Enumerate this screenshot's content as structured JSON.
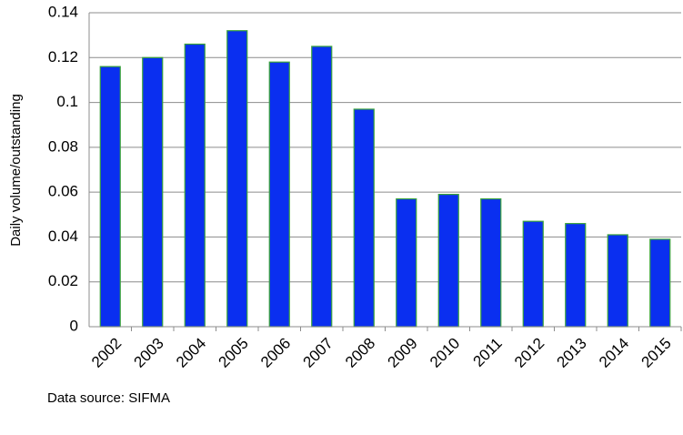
{
  "chart_data": {
    "type": "bar",
    "y_label": "Daily volume/outstanding",
    "annotation": "Data source: SIFMA",
    "categories": [
      "2002",
      "2003",
      "2004",
      "2005",
      "2006",
      "2007",
      "2008",
      "2009",
      "2010",
      "2011",
      "2012",
      "2013",
      "2014",
      "2015"
    ],
    "values": [
      0.116,
      0.12,
      0.126,
      0.132,
      0.118,
      0.125,
      0.097,
      0.057,
      0.059,
      0.057,
      0.047,
      0.046,
      0.041,
      0.039
    ],
    "color": "#0a2ff0",
    "edge_color": "#3aa33a",
    "ylim": [
      0,
      0.14
    ],
    "yticks": [
      0,
      0.02,
      0.04,
      0.06,
      0.08,
      0.1,
      0.12,
      0.14
    ],
    "grid": true
  }
}
